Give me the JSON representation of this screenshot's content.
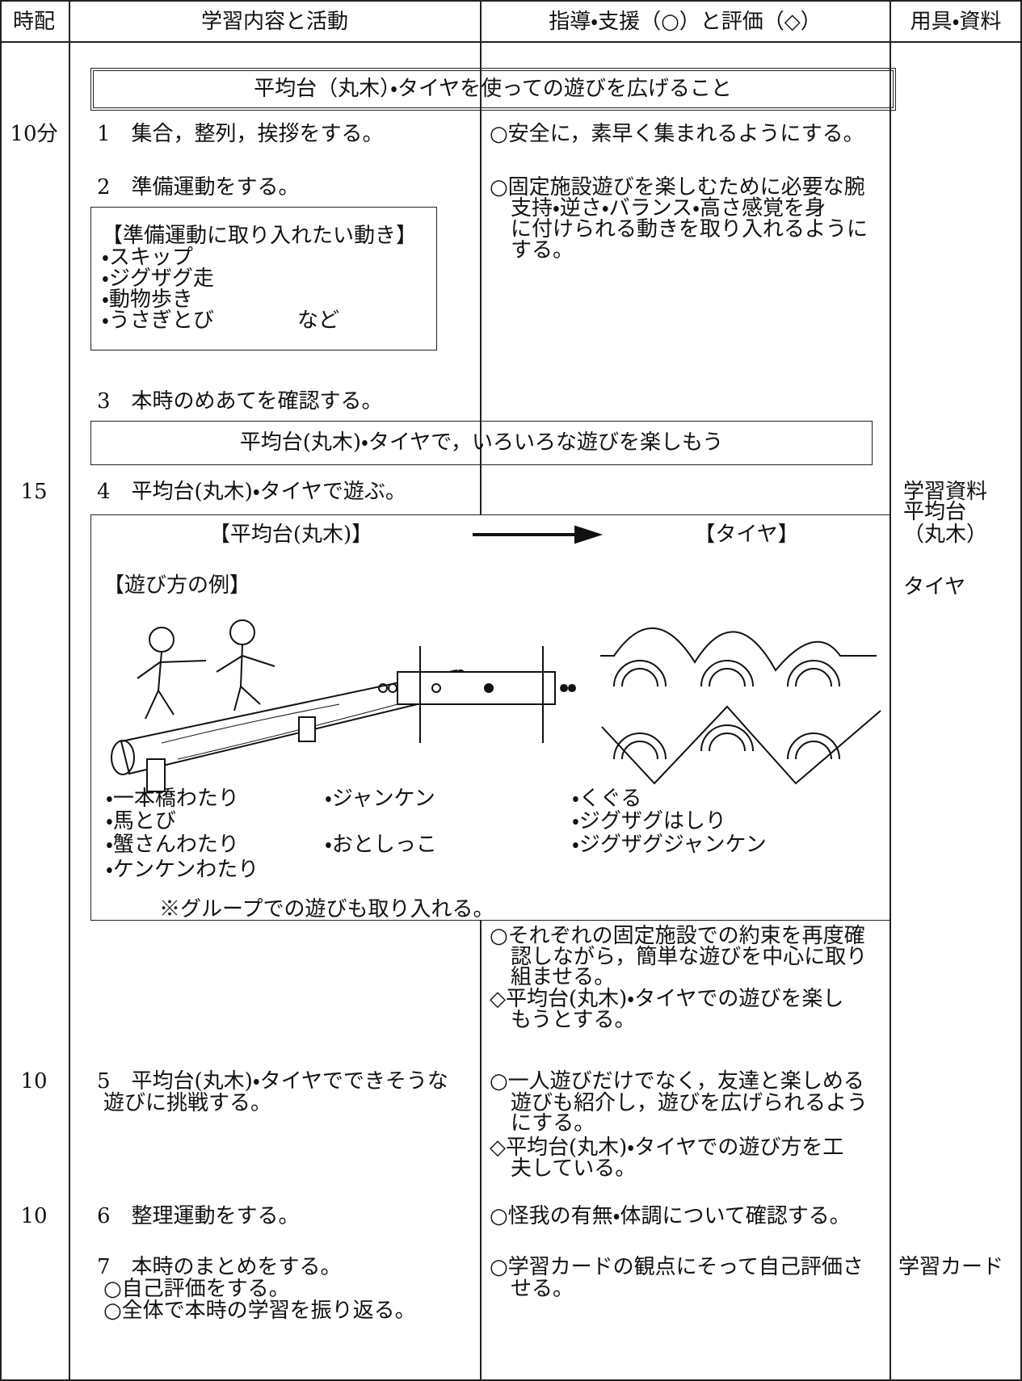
{
  "header": {
    "columns": [
      "時配",
      "学習内容と活動",
      "指導・支援（○）と評価（◇）",
      "用具・資料"
    ]
  },
  "goal": "平均台（丸木）・タイヤを使っての遊びを広げること",
  "rows": [
    {
      "time": "10分",
      "activity": [
        "1　集合，整列，挨拶をする。"
      ],
      "guidance": [
        "○安全に，素早く集まれるようにする。"
      ]
    },
    {
      "activity": [
        "2　準備運動をする。"
      ],
      "guidance": [
        "○固定施設遊びを楽しむために必要な腕",
        "支持・逆さ・バランス・高さ感覚を身",
        "に付けられる動きを取り入れるように",
        "する。"
      ]
    },
    {
      "activity": [
        "3　本時のめあてを確認する。"
      ]
    },
    {
      "time": "15",
      "activity": [
        "4　平均台(丸木)・タイヤで遊ぶ。"
      ],
      "materials": [
        "学習資料",
        "平均台",
        "（丸木）",
        "タイヤ"
      ]
    },
    {
      "guidance": [
        "○それぞれの固定施設での約束を再度確",
        "認しながら，簡単な遊びを中心に取り",
        "組ませる。",
        "◇平均台(丸木)・タイヤでの遊びを楽し",
        "もうとする。"
      ]
    },
    {
      "time": "10",
      "activity": [
        "5　平均台(丸木)・タイヤでできそうな",
        "遊びに挑戦する。"
      ],
      "guidance": [
        "○一人遊びだけでなく，友達と楽しめる",
        "遊びも紹介し，遊びを広げられるよう",
        "にする。",
        "◇平均台(丸木)・タイヤでの遊び方を工",
        "夫している。"
      ]
    },
    {
      "time": "10",
      "activity": [
        "6　整理運動をする。"
      ],
      "guidance": [
        "○怪我の有無・体調について確認する。"
      ]
    },
    {
      "activity": [
        "7　本時のまとめをする。",
        "○自己評価をする。",
        "○全体で本時の学習を振り返る。"
      ],
      "guidance": [
        "○学習カードの観点にそって自己評価さ",
        "せる。"
      ],
      "materials": [
        "学習カード"
      ]
    }
  ],
  "warmup_box": {
    "title": "【準備運動に取り入れたい動き】",
    "items": [
      "・スキップ",
      "・ジグザグ走",
      "・動物歩き",
      "・うさぎとび"
    ],
    "note": "など"
  },
  "aim": "平均台(丸木)・タイヤで，いろいろな遊びを楽しもう",
  "example_box": {
    "left_title": "【平均台(丸木)】",
    "right_title": "【タイヤ】",
    "subtitle": "【遊び方の例】",
    "left_items": [
      "・一本橋わたり",
      "・馬とび",
      "・蟹さんわたり",
      "・ケンケンわたり"
    ],
    "middle_items": [
      "・ジャンケン",
      "・おとしっこ"
    ],
    "right_items": [
      "・くぐる",
      "・ジグザグはしり",
      "・ジグザグジャンケン"
    ],
    "note": "※グループでの遊びも取り入れる。"
  }
}
